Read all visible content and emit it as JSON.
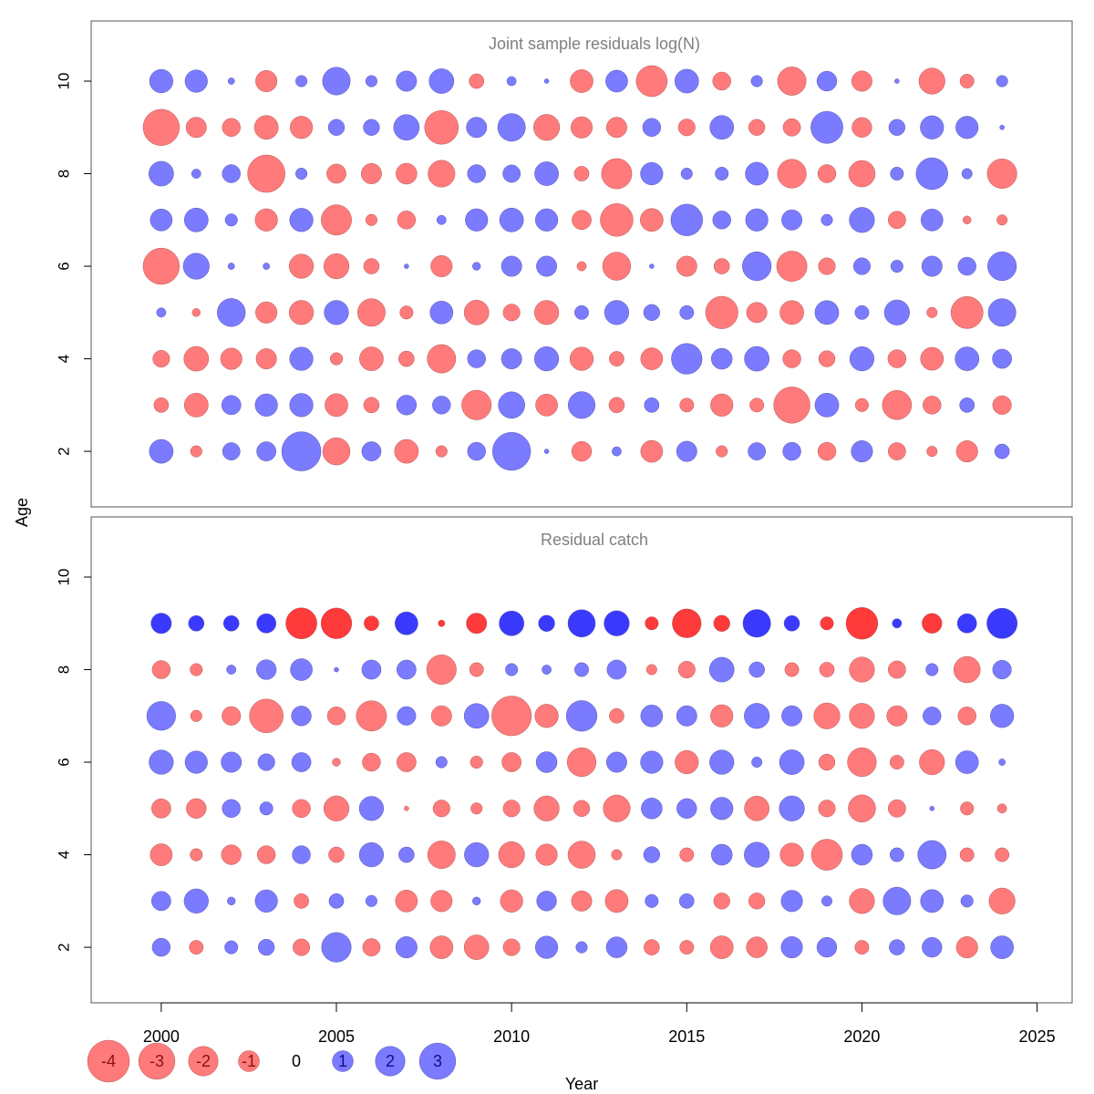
{
  "chart_data": [
    {
      "type": "bubble",
      "title": "Joint sample residuals log(N)",
      "xlabel": "Year",
      "ylabel": "Age",
      "xlim": [
        1998,
        2026
      ],
      "ylim": [
        0.8,
        11.3
      ],
      "yticks": [
        2,
        4,
        6,
        8,
        10
      ],
      "years": [
        2000,
        2001,
        2002,
        2003,
        2004,
        2005,
        2006,
        2007,
        2008,
        2009,
        2010,
        2011,
        2012,
        2013,
        2014,
        2015,
        2016,
        2017,
        2018,
        2019,
        2020,
        2021,
        2022,
        2023,
        2024
      ],
      "ages": [
        10,
        9,
        8,
        7,
        6,
        5,
        4,
        3,
        2
      ],
      "rows": [
        [
          1.25,
          1.15,
          0.1,
          -1.05,
          0.3,
          1.75,
          0.3,
          0.95,
          1.4,
          -0.5,
          0.2,
          0.05,
          -1.2,
          1.1,
          -2.2,
          1.3,
          -0.75,
          0.3,
          -1.85,
          0.9,
          -0.95,
          0.05,
          -1.55,
          -0.45,
          0.3
        ],
        [
          -3.0,
          -0.95,
          -0.75,
          -1.3,
          -1.15,
          0.6,
          0.6,
          1.5,
          -2.6,
          0.95,
          1.75,
          -1.55,
          -1.05,
          -0.95,
          0.75,
          -0.65,
          1.3,
          -0.6,
          -0.7,
          2.35,
          -0.9,
          0.6,
          1.25,
          1.15,
          0.05
        ],
        [
          1.4,
          0.2,
          0.75,
          -3.2,
          0.3,
          -0.85,
          -0.95,
          -1.0,
          -1.65,
          0.75,
          0.7,
          1.3,
          -0.5,
          -2.1,
          1.15,
          0.3,
          0.4,
          1.2,
          -1.9,
          -0.75,
          -1.6,
          0.4,
          2.3,
          0.25,
          -2.0
        ],
        [
          1.1,
          1.3,
          0.35,
          -1.15,
          1.25,
          -2.1,
          -0.3,
          -0.75,
          0.2,
          1.15,
          1.3,
          1.15,
          -0.85,
          -2.45,
          -1.2,
          2.3,
          0.75,
          1.15,
          0.95,
          0.3,
          1.45,
          -0.7,
          1.1,
          -0.15,
          -0.25
        ],
        [
          -3.0,
          1.55,
          0.1,
          0.1,
          -1.35,
          -1.45,
          -0.55,
          0.05,
          -1.05,
          0.15,
          0.95,
          0.95,
          -0.2,
          -1.8,
          0.05,
          -0.95,
          -0.55,
          1.9,
          -2.1,
          -0.65,
          0.65,
          0.35,
          0.95,
          0.75,
          1.9
        ],
        [
          0.2,
          -0.15,
          1.8,
          -1.05,
          -1.35,
          1.35,
          -1.75,
          -0.4,
          1.2,
          -1.4,
          -0.65,
          -1.35,
          0.45,
          1.35,
          0.6,
          0.45,
          -2.4,
          -0.95,
          -1.3,
          1.3,
          0.45,
          1.45,
          -0.25,
          -2.35,
          1.75
        ],
        [
          -0.65,
          -1.4,
          -1.05,
          -0.95,
          1.25,
          -0.35,
          -1.3,
          -0.55,
          -1.85,
          0.75,
          0.95,
          1.35,
          -1.25,
          -0.5,
          -1.1,
          2.15,
          1.0,
          1.4,
          -0.75,
          -0.6,
          1.35,
          -0.75,
          -1.2,
          1.3,
          0.85
        ],
        [
          -0.5,
          -1.3,
          0.85,
          1.15,
          1.25,
          -1.2,
          -0.55,
          0.9,
          0.75,
          -2.0,
          1.6,
          -1.1,
          1.65,
          -0.55,
          0.5,
          -0.45,
          -1.15,
          -0.45,
          -3.0,
          1.3,
          -0.4,
          -1.95,
          -0.75,
          0.5,
          -0.8
        ]
      ],
      "rows_extra": [
        1.3,
        -0.3,
        0.7,
        0.85,
        3.5,
        -1.7,
        0.85,
        -1.3,
        -0.3,
        0.75,
        3.3,
        0.05,
        -0.9,
        0.2,
        -1.1,
        0.95,
        -0.3,
        0.7,
        0.75,
        -0.75,
        1.05,
        -0.7,
        -0.25,
        -1.05,
        0.5
      ]
    },
    {
      "type": "bubble",
      "title": "Residual catch",
      "xlabel": "Year",
      "ylabel": "Age",
      "xlim": [
        1998,
        2026
      ],
      "ylim": [
        0.8,
        11.3
      ],
      "yticks": [
        2,
        4,
        6,
        8,
        10
      ],
      "years": [
        2000,
        2001,
        2002,
        2003,
        2004,
        2005,
        2006,
        2007,
        2008,
        2009,
        2010,
        2011,
        2012,
        2013,
        2014,
        2015,
        2016,
        2017,
        2018,
        2019,
        2020,
        2021,
        2022,
        2023,
        2024
      ],
      "ages": [
        9,
        8,
        7,
        6,
        5,
        4,
        3,
        2
      ],
      "plus_group_age": 9,
      "rows": [
        [
          0.95,
          0.55,
          0.55,
          0.85,
          -2.2,
          -2.15,
          -0.5,
          1.2,
          -0.1,
          -0.95,
          1.4,
          0.6,
          1.7,
          1.45,
          -0.4,
          -1.9,
          -0.6,
          1.75,
          0.55,
          -0.4,
          -2.3,
          0.2,
          -0.9,
          0.85,
          2.1
        ],
        [
          -0.75,
          -0.35,
          0.2,
          0.9,
          1.1,
          0.05,
          0.85,
          0.85,
          -2.0,
          -0.45,
          0.35,
          0.2,
          0.45,
          0.85,
          -0.25,
          -0.65,
          1.4,
          0.55,
          -0.45,
          -0.5,
          -1.45,
          -0.7,
          0.35,
          -1.6,
          0.8
        ],
        [
          1.9,
          -0.3,
          -0.8,
          -2.6,
          0.9,
          -0.75,
          -2.1,
          0.8,
          -0.95,
          1.4,
          -3.6,
          -1.25,
          2.15,
          -0.5,
          1.1,
          0.95,
          -1.15,
          1.45,
          0.95,
          -1.55,
          -1.45,
          -0.95,
          0.75,
          -0.75,
          1.25
        ],
        [
          1.35,
          1.15,
          0.95,
          0.65,
          0.85,
          -0.15,
          -0.75,
          -0.85,
          0.3,
          -0.35,
          -0.85,
          1.0,
          -1.9,
          0.95,
          1.15,
          -1.25,
          1.35,
          0.25,
          1.4,
          -0.6,
          -1.9,
          -0.45,
          -1.45,
          1.2,
          0.1
        ],
        [
          -0.85,
          -0.9,
          0.75,
          0.4,
          -0.75,
          -1.45,
          1.35,
          -0.05,
          -0.65,
          -0.3,
          -0.65,
          -1.45,
          -0.6,
          -1.65,
          1.0,
          0.9,
          1.15,
          -1.4,
          1.45,
          -0.65,
          -1.7,
          -0.7,
          0.05,
          -0.4,
          -0.2
        ],
        [
          -1.1,
          -0.35,
          -0.9,
          -0.75,
          0.75,
          -0.55,
          1.35,
          0.55,
          -1.75,
          1.35,
          -1.55,
          -1.05,
          -1.7,
          -0.25,
          0.6,
          -0.45,
          1.0,
          1.45,
          -1.25,
          -2.2,
          1.0,
          0.45,
          1.85,
          -0.45,
          -0.45
        ],
        [
          0.85,
          1.35,
          0.15,
          1.15,
          -0.5,
          0.5,
          0.3,
          -1.1,
          -1.05,
          0.15,
          -1.15,
          0.9,
          -0.95,
          -1.2,
          0.4,
          0.5,
          -0.6,
          -0.6,
          1.05,
          0.25,
          -1.45,
          1.75,
          1.2,
          0.35,
          -1.55
        ],
        [
          0.75,
          -0.45,
          0.4,
          0.6,
          -0.65,
          2.0,
          -0.7,
          1.05,
          -1.2,
          -1.4,
          -0.65,
          1.15,
          0.3,
          1.0,
          -0.55,
          -0.45,
          -1.2,
          -1.0,
          1.05,
          0.9,
          -0.45,
          0.55,
          0.9,
          -1.05,
          1.2
        ]
      ]
    }
  ],
  "legend": {
    "labels": [
      "-4",
      "-3",
      "-2",
      "-1",
      "0",
      "1",
      "2",
      "3"
    ],
    "values": [
      -4,
      -3,
      -2,
      -1,
      0,
      1,
      2,
      3
    ]
  },
  "axis": {
    "xticks": [
      2000,
      2005,
      2010,
      2015,
      2020,
      2025
    ],
    "xtick_labels": [
      "2000",
      "2005",
      "2010",
      "2015",
      "2020",
      "2025"
    ],
    "ytick_labels": [
      "2",
      "4",
      "6",
      "8",
      "10"
    ],
    "xlabel": "Year",
    "ylabel": "Age"
  },
  "colors": {
    "positive": "#7b7bff",
    "negative": "#ff7b7b",
    "positive_strong": "#3a3aff",
    "negative_strong": "#ff3a3a",
    "panel_title": "#808080",
    "frame": "#555555"
  }
}
